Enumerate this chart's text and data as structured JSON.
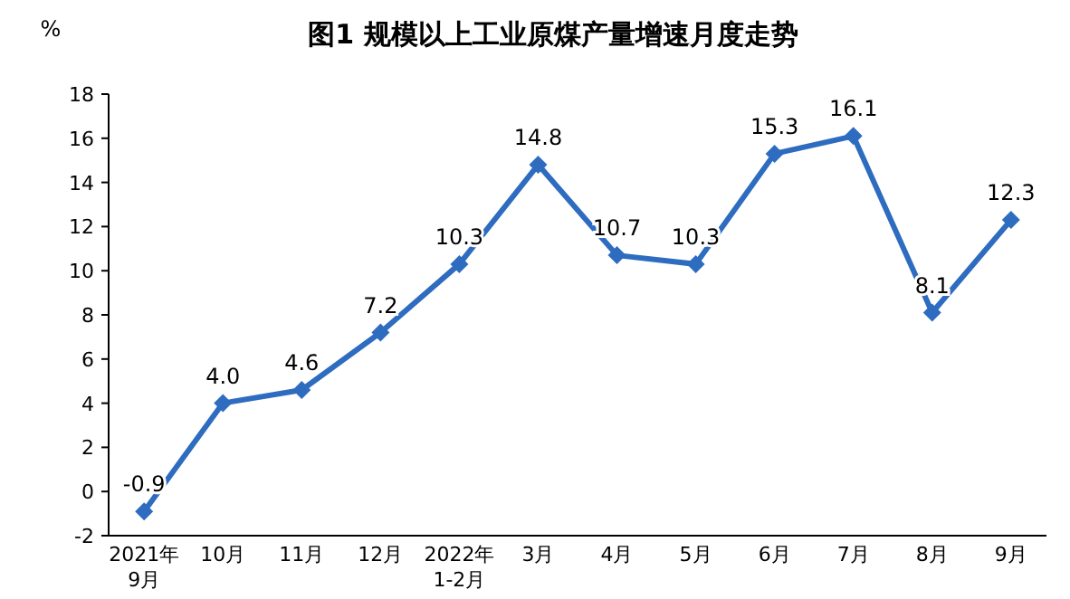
{
  "chart_data": {
    "type": "line",
    "title": "图1  规模以上工业原煤产量增速月度走势",
    "ylabel": "%",
    "categories": [
      "2021年\n9月",
      "10月",
      "11月",
      "12月",
      "2022年\n1-2月",
      "3月",
      "4月",
      "5月",
      "6月",
      "7月",
      "8月",
      "9月"
    ],
    "series": [
      {
        "color": "#2e6cc0",
        "values": [
          -0.9,
          4.0,
          4.6,
          7.2,
          10.3,
          14.8,
          10.7,
          10.3,
          15.3,
          16.1,
          8.1,
          12.3
        ],
        "value_labels": [
          "-0.9",
          "4.0",
          "4.6",
          "7.2",
          "10.3",
          "14.8",
          "10.7",
          "10.3",
          "15.3",
          "16.1",
          "8.1",
          "12.3"
        ]
      }
    ],
    "ylim": [
      -2,
      18
    ],
    "yticks": [
      -2,
      0,
      2,
      4,
      6,
      8,
      10,
      12,
      14,
      16,
      18
    ],
    "grid": false,
    "marker": "diamond",
    "line_style": "solid"
  }
}
